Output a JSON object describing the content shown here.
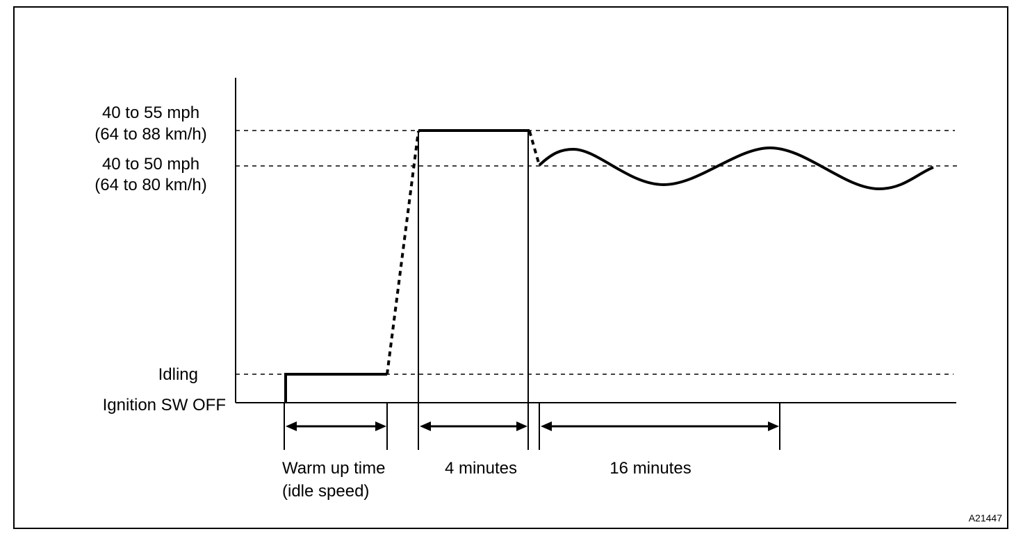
{
  "labels": {
    "speed_high_mph": "40 to 55 mph",
    "speed_high_kmh": "(64 to 88 km/h)",
    "speed_mid_mph": "40 to 50 mph",
    "speed_mid_kmh": "(64 to 80 km/h)",
    "idling": "Idling",
    "ignition_off": "Ignition SW OFF"
  },
  "phases": {
    "warm_up_line1": "Warm up time",
    "warm_up_line2": "(idle speed)",
    "steady_cruise": "4 minutes",
    "variable_cruise": "16 minutes"
  },
  "figure_code": "A21447",
  "colors": {
    "line": "#000000",
    "background": "#ffffff"
  }
}
